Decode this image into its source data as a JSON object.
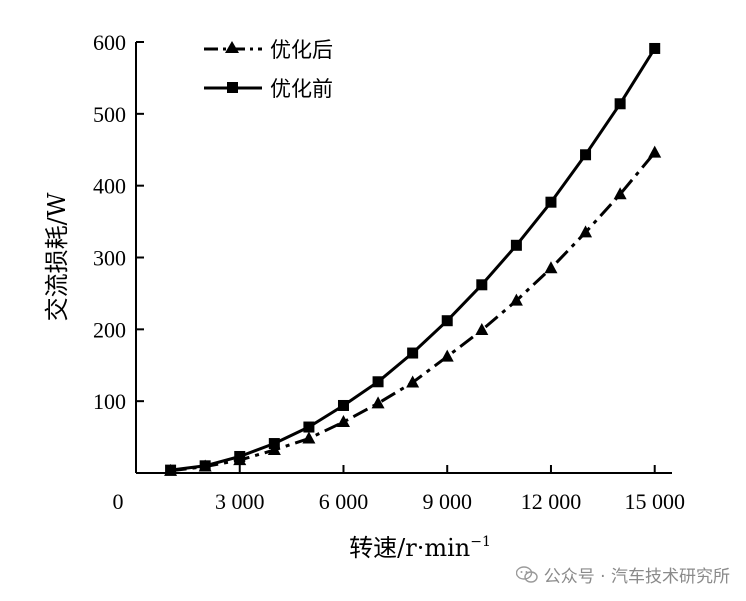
{
  "chart_data": {
    "type": "line",
    "xlabel": "转速/r·min",
    "xlabel_sup": "−1",
    "ylabel": "交流损耗/W",
    "origin_label": "0",
    "xlim": [
      0,
      15500
    ],
    "ylim": [
      0,
      600
    ],
    "x_ticks": [
      3000,
      6000,
      9000,
      12000,
      15000
    ],
    "x_tick_labels": [
      "3 000",
      "6 000",
      "9 000",
      "12 000",
      "15 000"
    ],
    "y_ticks": [
      100,
      200,
      300,
      400,
      500,
      600
    ],
    "y_tick_labels": [
      "100",
      "200",
      "300",
      "400",
      "500",
      "600"
    ],
    "legend_position": "top-left",
    "series": [
      {
        "name": "优化后",
        "marker": "triangle",
        "line_style": "dash-dot",
        "color": "#000000",
        "x": [
          1000,
          2000,
          3000,
          4000,
          5000,
          6000,
          7000,
          8000,
          9000,
          10000,
          11000,
          12000,
          13000,
          14000,
          15000
        ],
        "values": [
          3,
          9,
          18,
          32,
          48,
          71,
          97,
          126,
          162,
          199,
          240,
          285,
          335,
          388,
          446
        ]
      },
      {
        "name": "优化前",
        "marker": "square",
        "line_style": "solid",
        "color": "#000000",
        "x": [
          1000,
          2000,
          3000,
          4000,
          5000,
          6000,
          7000,
          8000,
          9000,
          10000,
          11000,
          12000,
          13000,
          14000,
          15000
        ],
        "values": [
          4,
          10,
          23,
          41,
          64,
          94,
          127,
          167,
          212,
          262,
          317,
          377,
          443,
          514,
          591
        ]
      }
    ]
  },
  "watermark": {
    "text": "公众号 · 汽车技术研究所",
    "icon": "wechat-icon"
  }
}
